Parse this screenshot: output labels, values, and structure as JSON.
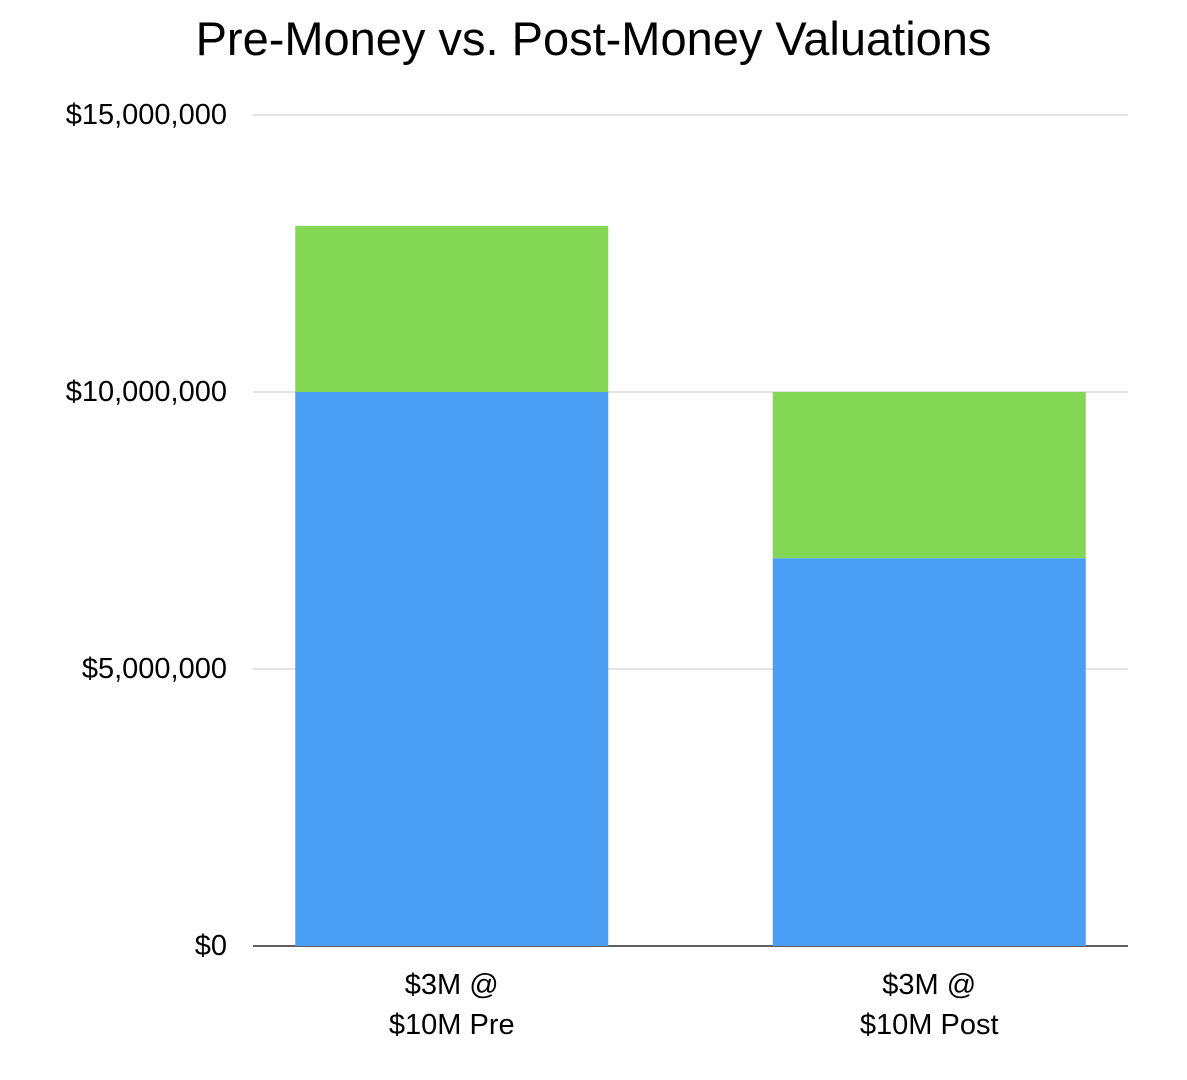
{
  "chart_data": {
    "type": "bar",
    "stacked": true,
    "title": "Pre-Money vs. Post-Money Valuations",
    "xlabel": "",
    "ylabel": "",
    "categories": [
      [
        "$3M @",
        "$10M Pre"
      ],
      [
        "$3M @",
        "$10M Post"
      ]
    ],
    "series": [
      {
        "color": "#4a9ff5",
        "values": [
          10000000,
          7000000
        ]
      },
      {
        "color": "#84d655",
        "values": [
          3000000,
          3000000
        ]
      }
    ],
    "ylim": [
      0,
      15000000
    ],
    "yticks": [
      0,
      5000000,
      10000000,
      15000000
    ],
    "ytick_labels": [
      "$0",
      "$5,000,000",
      "$10,000,000",
      "$15,000,000"
    ],
    "grid": true,
    "legend": "none"
  }
}
